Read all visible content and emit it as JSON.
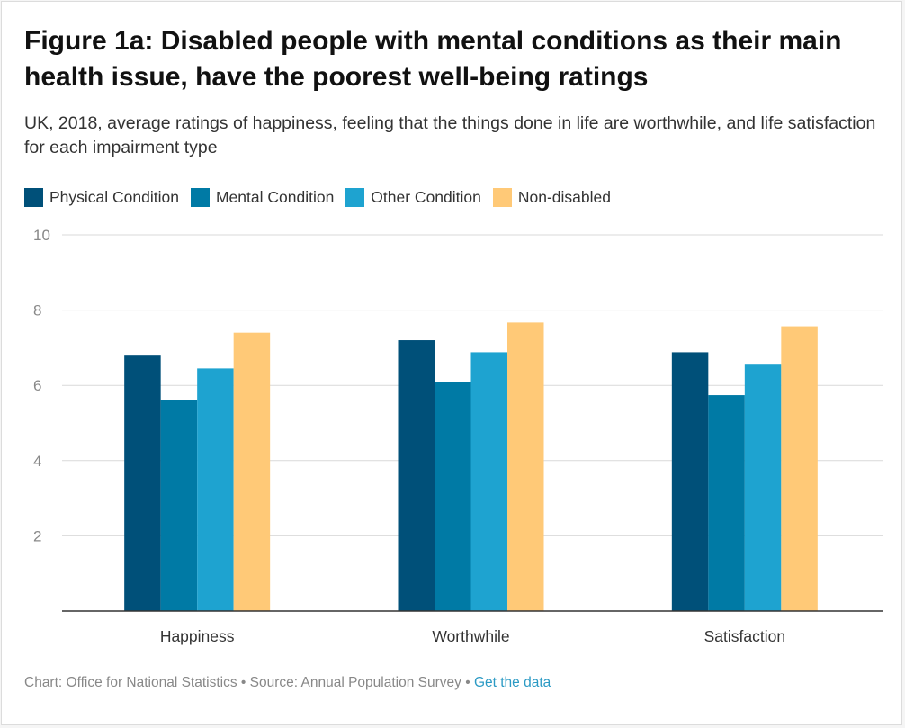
{
  "header": {
    "title": "Figure 1a: Disabled people with mental conditions as their main health issue, have the poorest well-being ratings",
    "subtitle": "UK, 2018, average ratings of happiness, feeling that the things done in life are worthwhile, and life satisfaction for each impairment type"
  },
  "footer": {
    "credit": "Chart: Office for National Statistics • Source: Annual Population Survey • ",
    "link_label": "Get the data"
  },
  "colors": {
    "physical": "#005079",
    "mental": "#007aa5",
    "other": "#1ea3d0",
    "nondisabled": "#ffc977",
    "grid": "#d9d9d9",
    "axis": "#333333"
  },
  "chart_data": {
    "type": "bar",
    "categories": [
      "Happiness",
      "Worthwhile",
      "Satisfaction"
    ],
    "series": [
      {
        "name": "Physical Condition",
        "values": [
          6.79,
          7.2,
          6.88
        ]
      },
      {
        "name": "Mental Condition",
        "values": [
          5.6,
          6.1,
          5.74
        ]
      },
      {
        "name": "Other Condition",
        "values": [
          6.45,
          6.88,
          6.55
        ]
      },
      {
        "name": "Non-disabled",
        "values": [
          7.4,
          7.67,
          7.57
        ]
      }
    ],
    "yticks": [
      "10",
      "8",
      "6",
      "4",
      "2"
    ],
    "ylim": [
      0,
      10
    ],
    "grid": true,
    "legend": "top-left"
  }
}
